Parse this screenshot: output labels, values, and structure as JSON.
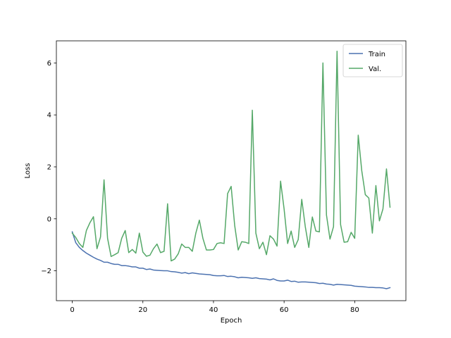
{
  "chart_data": {
    "type": "line",
    "title": "",
    "xlabel": "Epoch",
    "ylabel": "Loss",
    "xlim": [
      -4.5,
      94.5
    ],
    "ylim": [
      -3.15,
      6.85
    ],
    "xticks": [
      0,
      20,
      40,
      60,
      80
    ],
    "yticks": [
      -2,
      0,
      2,
      4,
      6
    ],
    "grid": false,
    "legend": "top-right",
    "series": [
      {
        "name": "Train",
        "color": "#4c72b0",
        "x": [
          0,
          1,
          2,
          3,
          4,
          5,
          6,
          7,
          8,
          9,
          10,
          11,
          12,
          13,
          14,
          15,
          16,
          17,
          18,
          19,
          20,
          21,
          22,
          23,
          24,
          25,
          26,
          27,
          28,
          29,
          30,
          31,
          32,
          33,
          34,
          35,
          36,
          37,
          38,
          39,
          40,
          41,
          42,
          43,
          44,
          45,
          46,
          47,
          48,
          49,
          50,
          51,
          52,
          53,
          54,
          55,
          56,
          57,
          58,
          59,
          60,
          61,
          62,
          63,
          64,
          65,
          66,
          67,
          68,
          69,
          70,
          71,
          72,
          73,
          74,
          75,
          76,
          77,
          78,
          79,
          80,
          81,
          82,
          83,
          84,
          85,
          86,
          87,
          88,
          89,
          90
        ],
        "values": [
          -0.5,
          -0.92,
          -1.1,
          -1.22,
          -1.32,
          -1.4,
          -1.48,
          -1.55,
          -1.6,
          -1.67,
          -1.67,
          -1.72,
          -1.75,
          -1.75,
          -1.8,
          -1.8,
          -1.82,
          -1.85,
          -1.85,
          -1.9,
          -1.9,
          -1.95,
          -1.93,
          -1.97,
          -1.98,
          -1.99,
          -2.0,
          -2.0,
          -2.03,
          -2.04,
          -2.06,
          -2.09,
          -2.07,
          -2.11,
          -2.08,
          -2.1,
          -2.12,
          -2.13,
          -2.14,
          -2.15,
          -2.18,
          -2.19,
          -2.19,
          -2.18,
          -2.22,
          -2.21,
          -2.23,
          -2.27,
          -2.25,
          -2.26,
          -2.27,
          -2.29,
          -2.27,
          -2.3,
          -2.31,
          -2.32,
          -2.35,
          -2.31,
          -2.37,
          -2.39,
          -2.39,
          -2.36,
          -2.41,
          -2.4,
          -2.44,
          -2.43,
          -2.43,
          -2.44,
          -2.45,
          -2.46,
          -2.49,
          -2.48,
          -2.51,
          -2.52,
          -2.55,
          -2.52,
          -2.53,
          -2.54,
          -2.55,
          -2.56,
          -2.59,
          -2.6,
          -2.61,
          -2.62,
          -2.64,
          -2.64,
          -2.65,
          -2.65,
          -2.66,
          -2.69,
          -2.65
        ]
      },
      {
        "name": "Val.",
        "color": "#55a868",
        "x": [
          0,
          1,
          2,
          3,
          4,
          5,
          6,
          7,
          8,
          9,
          10,
          11,
          12,
          13,
          14,
          15,
          16,
          17,
          18,
          19,
          20,
          21,
          22,
          23,
          24,
          25,
          26,
          27,
          28,
          29,
          30,
          31,
          32,
          33,
          34,
          35,
          36,
          37,
          38,
          39,
          40,
          41,
          42,
          43,
          44,
          45,
          46,
          47,
          48,
          49,
          50,
          51,
          52,
          53,
          54,
          55,
          56,
          57,
          58,
          59,
          60,
          61,
          62,
          63,
          64,
          65,
          66,
          67,
          68,
          69,
          70,
          71,
          72,
          73,
          74,
          75,
          76,
          77,
          78,
          79,
          80,
          81,
          82,
          83,
          84,
          85,
          86,
          87,
          88,
          89,
          90
        ],
        "values": [
          -0.55,
          -0.72,
          -0.95,
          -1.1,
          -0.45,
          -0.15,
          0.08,
          -1.15,
          -0.7,
          1.5,
          -0.75,
          -1.45,
          -1.38,
          -1.3,
          -0.75,
          -0.45,
          -1.3,
          -1.18,
          -1.32,
          -0.55,
          -1.28,
          -1.44,
          -1.4,
          -1.15,
          -0.97,
          -1.3,
          -1.25,
          0.58,
          -1.62,
          -1.55,
          -1.35,
          -0.97,
          -1.1,
          -1.1,
          -1.25,
          -0.55,
          -0.05,
          -0.75,
          -1.2,
          -1.2,
          -1.18,
          -0.95,
          -0.92,
          -0.95,
          0.97,
          1.25,
          -0.25,
          -1.2,
          -0.88,
          -0.9,
          -0.95,
          4.18,
          -0.55,
          -1.15,
          -0.9,
          -1.38,
          -0.65,
          -0.78,
          -1.05,
          1.45,
          0.38,
          -0.95,
          -0.47,
          -1.1,
          -0.8,
          0.75,
          -0.3,
          -1.1,
          0.07,
          -0.47,
          -0.5,
          6.0,
          0.15,
          -0.78,
          -0.3,
          6.45,
          -0.22,
          -0.9,
          -0.88,
          -0.52,
          -0.75,
          3.22,
          1.85,
          0.93,
          0.8,
          -0.55,
          1.28,
          -0.08,
          0.38,
          1.92,
          0.45
        ]
      }
    ]
  }
}
